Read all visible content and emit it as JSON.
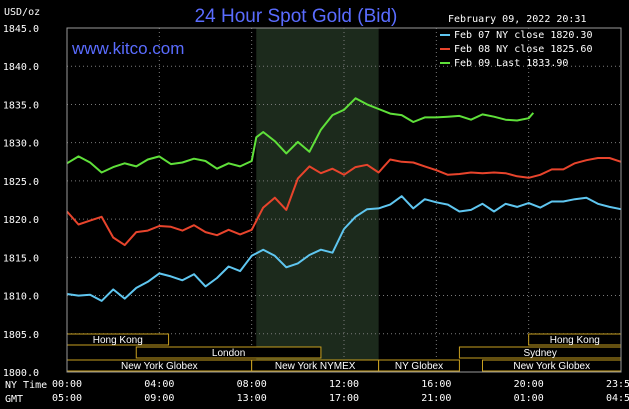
{
  "header": {
    "title": "24 Hour Spot Gold (Bid)",
    "date_text": "February 09, 2022 20:31",
    "website": "www.kitco.com",
    "unit_label": "USD/oz"
  },
  "time_rows": {
    "ny_label": "NY Time",
    "gmt_label": "GMT"
  },
  "markets": [
    {
      "name": "Hong Kong",
      "start": 0,
      "end": 4.4,
      "row": 0
    },
    {
      "name": "Hong Kong",
      "start": 20,
      "end": 24,
      "row": 0
    },
    {
      "name": "London",
      "start": 3,
      "end": 11,
      "row": 1
    },
    {
      "name": "Sydney",
      "start": 17,
      "end": 24,
      "row": 1
    },
    {
      "name": "New York Globex",
      "start": 0,
      "end": 8,
      "row": 2
    },
    {
      "name": "New York NYMEX",
      "start": 8,
      "end": 13.5,
      "row": 2
    },
    {
      "name": "NY Globex",
      "start": 13.5,
      "end": 17,
      "row": 2
    },
    {
      "name": "New York Globex",
      "start": 18,
      "end": 24,
      "row": 2
    }
  ],
  "colors": {
    "blue_series": "#5fc6f0",
    "red_series": "#e8442c",
    "green_series": "#5fe03a",
    "title": "#5a6cff",
    "nymex_shade": "#1c2a1c",
    "grid": "#7a7a7a"
  },
  "chart_data": {
    "type": "line",
    "title": "24 Hour Spot Gold (Bid)",
    "ylabel": "USD/oz",
    "ylim": [
      1800.0,
      1845.0
    ],
    "yticks": [
      "1800.0",
      "1805.0",
      "1810.0",
      "1815.0",
      "1820.0",
      "1825.0",
      "1830.0",
      "1835.0",
      "1840.0",
      "1845.0"
    ],
    "xlim": [
      0,
      24
    ],
    "xticks_ny": [
      "00:00",
      "04:00",
      "08:00",
      "12:00",
      "16:00",
      "20:00",
      "23:59"
    ],
    "xticks_gmt": [
      "05:00",
      "09:00",
      "13:00",
      "17:00",
      "21:00",
      "01:00",
      "04:59"
    ],
    "xtick_hours": [
      0,
      4,
      8,
      12,
      16,
      20,
      24
    ],
    "shaded_range_hours": [
      8.2,
      13.5
    ],
    "grid": true,
    "legend_position": "top-right",
    "series": [
      {
        "name": "Feb 07 NY close 1820.30",
        "color_key": "blue_series",
        "x": [
          0,
          0.5,
          1,
          1.5,
          2,
          2.5,
          3,
          3.5,
          4,
          4.5,
          5,
          5.5,
          6,
          6.5,
          7,
          7.5,
          8,
          8.5,
          9,
          9.5,
          10,
          10.5,
          11,
          11.5,
          12,
          12.5,
          13,
          13.5,
          14,
          14.5,
          15,
          15.5,
          16,
          16.5,
          17,
          17.5,
          18,
          18.5,
          19,
          19.5,
          20,
          20.5,
          21,
          21.5,
          22,
          22.5,
          23,
          23.5,
          24
        ],
        "values": [
          1810.2,
          1810.0,
          1810.1,
          1809.3,
          1810.8,
          1809.6,
          1811.0,
          1811.8,
          1812.9,
          1812.5,
          1812.0,
          1812.8,
          1811.2,
          1812.3,
          1813.8,
          1813.2,
          1815.2,
          1816.0,
          1815.2,
          1813.7,
          1814.2,
          1815.3,
          1816.0,
          1815.6,
          1818.7,
          1820.3,
          1821.3,
          1821.4,
          1821.9,
          1823.0,
          1821.4,
          1822.6,
          1822.2,
          1821.9,
          1821.0,
          1821.2,
          1822.0,
          1821.0,
          1822.0,
          1821.6,
          1822.1,
          1821.5,
          1822.3,
          1822.3,
          1822.6,
          1822.8,
          1822.0,
          1821.6,
          1821.3
        ]
      },
      {
        "name": "Feb 08 NY close 1825.60",
        "color_key": "red_series",
        "x": [
          0,
          0.5,
          1,
          1.5,
          2,
          2.5,
          3,
          3.5,
          4,
          4.5,
          5,
          5.5,
          6,
          6.5,
          7,
          7.5,
          8,
          8.5,
          9,
          9.5,
          10,
          10.5,
          11,
          11.5,
          12,
          12.5,
          13,
          13.5,
          14,
          14.5,
          15,
          15.5,
          16,
          16.5,
          17,
          17.5,
          18,
          18.5,
          19,
          19.5,
          20,
          20.5,
          21,
          21.5,
          22,
          22.5,
          23,
          23.5,
          24
        ],
        "values": [
          1821.0,
          1819.3,
          1819.8,
          1820.3,
          1817.6,
          1816.6,
          1818.3,
          1818.5,
          1819.1,
          1819.0,
          1818.5,
          1819.2,
          1818.3,
          1817.9,
          1818.6,
          1818.0,
          1818.6,
          1821.5,
          1822.8,
          1821.2,
          1825.3,
          1826.9,
          1826.0,
          1826.6,
          1825.8,
          1826.8,
          1827.1,
          1826.1,
          1827.8,
          1827.5,
          1827.4,
          1826.9,
          1826.4,
          1825.8,
          1825.9,
          1826.1,
          1826.0,
          1826.1,
          1826.0,
          1825.6,
          1825.4,
          1825.8,
          1826.5,
          1826.5,
          1827.3,
          1827.7,
          1828.0,
          1828.0,
          1827.5
        ]
      },
      {
        "name": "Feb 09 Last 1833.90",
        "color_key": "green_series",
        "x": [
          0,
          0.5,
          1,
          1.5,
          2,
          2.5,
          3,
          3.5,
          4,
          4.5,
          5,
          5.5,
          6,
          6.5,
          7,
          7.5,
          8,
          8.2,
          8.5,
          9,
          9.5,
          10,
          10.5,
          11,
          11.5,
          12,
          12.5,
          13,
          13.5,
          14,
          14.5,
          15,
          15.5,
          16,
          16.5,
          17,
          17.5,
          18,
          18.5,
          19,
          19.5,
          20,
          20.2
        ],
        "values": [
          1827.3,
          1828.2,
          1827.4,
          1826.1,
          1826.8,
          1827.3,
          1826.9,
          1827.8,
          1828.2,
          1827.2,
          1827.4,
          1827.9,
          1827.6,
          1826.6,
          1827.3,
          1826.9,
          1827.6,
          1830.7,
          1831.4,
          1830.2,
          1828.6,
          1830.1,
          1828.8,
          1831.7,
          1833.6,
          1834.3,
          1835.8,
          1835.0,
          1834.4,
          1833.8,
          1833.6,
          1832.7,
          1833.3,
          1833.3,
          1833.4,
          1833.5,
          1833.0,
          1833.7,
          1833.4,
          1833.0,
          1832.9,
          1833.2,
          1833.9
        ]
      }
    ]
  }
}
